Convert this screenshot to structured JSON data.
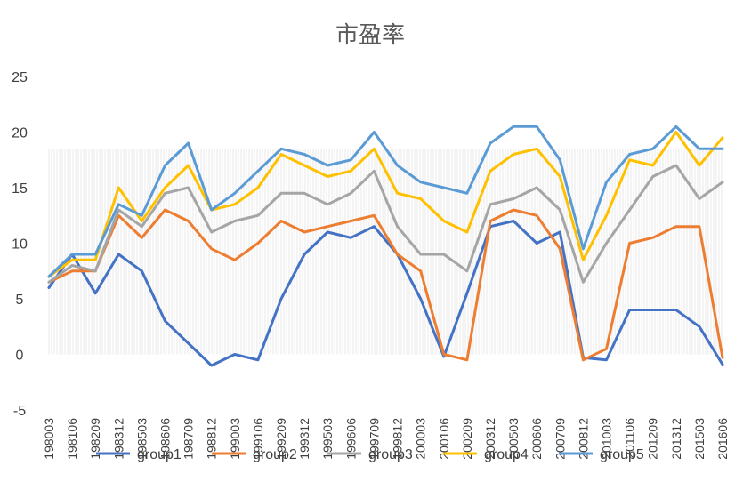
{
  "chart_data": {
    "type": "line",
    "title": "市盈率",
    "xlabel": "",
    "ylabel": "",
    "ylim": [
      -5,
      25
    ],
    "yticks": [
      -5,
      0,
      5,
      10,
      15,
      20,
      25
    ],
    "grid": false,
    "legend_position": "bottom",
    "x": [
      "198003",
      "198106",
      "198209",
      "198312",
      "198503",
      "198606",
      "198709",
      "198812",
      "199003",
      "199106",
      "199209",
      "199312",
      "199503",
      "199606",
      "199709",
      "199812",
      "200003",
      "200106",
      "200209",
      "200312",
      "200503",
      "200606",
      "200709",
      "200812",
      "201003",
      "201106",
      "201209",
      "201312",
      "201503",
      "201606"
    ],
    "series": [
      {
        "name": "group1",
        "color": "#4472C4",
        "values": [
          6.0,
          9.0,
          5.5,
          9.0,
          7.5,
          3.0,
          1.0,
          -1.0,
          0.0,
          -0.5,
          5.0,
          9.0,
          11.0,
          10.5,
          11.5,
          9.0,
          5.0,
          -0.2,
          5.5,
          11.5,
          12.0,
          10.0,
          11.0,
          -0.3,
          -0.5,
          4.0,
          4.0,
          4.0,
          2.5,
          -0.9
        ]
      },
      {
        "name": "group2",
        "color": "#ED7D31",
        "values": [
          6.5,
          7.5,
          7.5,
          12.5,
          10.5,
          13.0,
          12.0,
          9.5,
          8.5,
          10.0,
          12.0,
          11.0,
          11.5,
          12.0,
          12.5,
          9.0,
          7.5,
          0.0,
          -0.5,
          12.0,
          13.0,
          12.5,
          9.5,
          -0.5,
          0.5,
          10.0,
          10.5,
          11.5,
          11.5,
          -0.3
        ]
      },
      {
        "name": "group3",
        "color": "#A5A5A5",
        "values": [
          6.5,
          8.0,
          7.5,
          13.0,
          11.5,
          14.5,
          15.0,
          11.0,
          12.0,
          12.5,
          14.5,
          14.5,
          13.5,
          14.5,
          16.5,
          11.5,
          9.0,
          9.0,
          7.5,
          13.5,
          14.0,
          15.0,
          13.0,
          6.5,
          10.0,
          13.0,
          16.0,
          17.0,
          14.0,
          15.5
        ]
      },
      {
        "name": "group4",
        "color": "#FFC000",
        "values": [
          7.0,
          8.5,
          8.5,
          15.0,
          12.0,
          15.0,
          17.0,
          13.0,
          13.5,
          15.0,
          18.0,
          17.0,
          16.0,
          16.5,
          18.5,
          14.5,
          14.0,
          12.0,
          11.0,
          16.5,
          18.0,
          18.5,
          16.0,
          8.5,
          12.5,
          17.5,
          17.0,
          20.0,
          17.0,
          19.5
        ]
      },
      {
        "name": "group5",
        "color": "#5B9BD5",
        "values": [
          7.0,
          9.0,
          9.0,
          13.5,
          12.5,
          17.0,
          19.0,
          13.0,
          14.5,
          16.5,
          18.5,
          18.0,
          17.0,
          17.5,
          20.0,
          17.0,
          15.5,
          15.0,
          14.5,
          19.0,
          20.5,
          20.5,
          17.5,
          9.5,
          15.5,
          18.0,
          18.5,
          20.5,
          18.5,
          18.5
        ]
      }
    ]
  }
}
